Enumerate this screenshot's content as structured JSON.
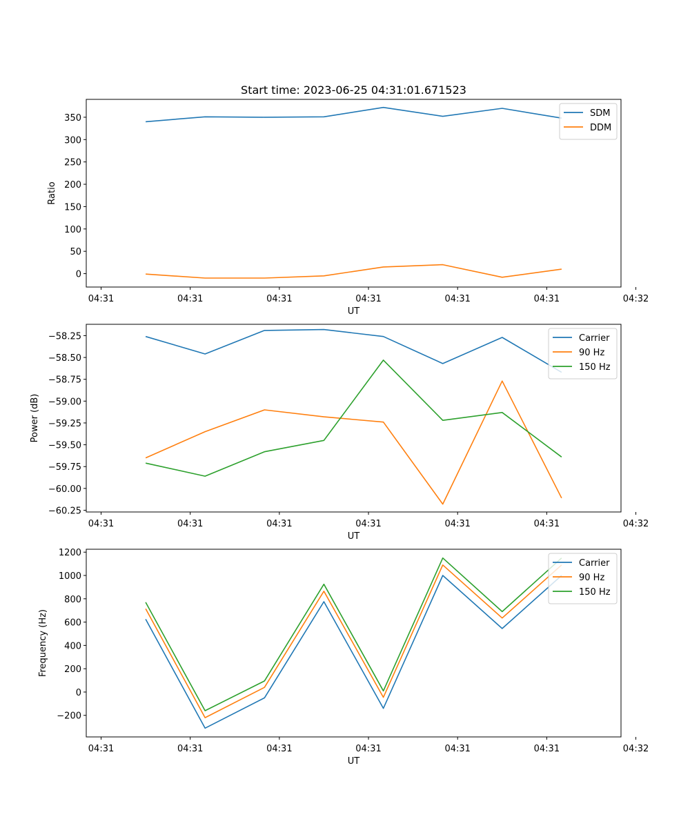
{
  "colors": {
    "c0": "#1f77b4",
    "c1": "#ff7f0e",
    "c2": "#2ca02c"
  },
  "chart_data": [
    {
      "type": "line",
      "title": "Start time: 2023-06-25 04:31:01.671523",
      "xlabel": "UT",
      "ylabel": "Ratio",
      "xlim": [
        0,
        9
      ],
      "ylim": [
        -30,
        390
      ],
      "xticks": [
        0.25,
        1.75,
        3.25,
        4.75,
        6.25,
        7.75,
        9.25
      ],
      "xtick_labels": [
        "04:31",
        "04:31",
        "04:31",
        "04:31",
        "04:31",
        "04:31",
        "04:32"
      ],
      "yticks": [
        0,
        50,
        100,
        150,
        200,
        250,
        300,
        350
      ],
      "ytick_labels": [
        "0",
        "50",
        "100",
        "150",
        "200",
        "250",
        "300",
        "350"
      ],
      "legend": "top-right",
      "x": [
        1,
        2,
        3,
        4,
        5,
        6,
        7,
        8
      ],
      "series": [
        {
          "name": "SDM",
          "color": "#1f77b4",
          "values": [
            340,
            351,
            350,
            351,
            372,
            352,
            370,
            348
          ]
        },
        {
          "name": "DDM",
          "color": "#ff7f0e",
          "values": [
            -1,
            -10,
            -10,
            -5,
            15,
            20,
            -8,
            10
          ]
        }
      ]
    },
    {
      "type": "line",
      "title": "",
      "xlabel": "UT",
      "ylabel": "Power (dB)",
      "xlim": [
        0,
        9
      ],
      "ylim": [
        -60.27,
        -58.12
      ],
      "xticks": [
        0.25,
        1.75,
        3.25,
        4.75,
        6.25,
        7.75,
        9.25
      ],
      "xtick_labels": [
        "04:31",
        "04:31",
        "04:31",
        "04:31",
        "04:31",
        "04:31",
        "04:32"
      ],
      "yticks": [
        -60.25,
        -60.0,
        -59.75,
        -59.5,
        -59.25,
        -59.0,
        -58.75,
        -58.5,
        -58.25
      ],
      "ytick_labels": [
        "−60.25",
        "−60.00",
        "−59.75",
        "−59.50",
        "−59.25",
        "−59.00",
        "−58.75",
        "−58.50",
        "−58.25"
      ],
      "legend": "top-right",
      "x": [
        1,
        2,
        3,
        4,
        5,
        6,
        7,
        8
      ],
      "series": [
        {
          "name": "Carrier",
          "color": "#1f77b4",
          "values": [
            -58.26,
            -58.46,
            -58.19,
            -58.18,
            -58.26,
            -58.57,
            -58.27,
            -58.67
          ]
        },
        {
          "name": "90 Hz",
          "color": "#ff7f0e",
          "values": [
            -59.65,
            -59.35,
            -59.1,
            -59.18,
            -59.24,
            -60.18,
            -58.77,
            -60.11
          ]
        },
        {
          "name": "150 Hz",
          "color": "#2ca02c",
          "values": [
            -59.71,
            -59.86,
            -59.58,
            -59.45,
            -58.53,
            -59.22,
            -59.13,
            -59.64
          ]
        }
      ]
    },
    {
      "type": "line",
      "title": "",
      "xlabel": "UT",
      "ylabel": "Frequency (Hz)",
      "xlim": [
        0,
        9
      ],
      "ylim": [
        -385,
        1225
      ],
      "xticks": [
        0.25,
        1.75,
        3.25,
        4.75,
        6.25,
        7.75,
        9.25
      ],
      "xtick_labels": [
        "04:31",
        "04:31",
        "04:31",
        "04:31",
        "04:31",
        "04:31",
        "04:32"
      ],
      "yticks": [
        -200,
        0,
        200,
        400,
        600,
        800,
        1000,
        1200
      ],
      "ytick_labels": [
        "−200",
        "0",
        "200",
        "400",
        "600",
        "800",
        "1000",
        "1200"
      ],
      "legend": "top-right",
      "x": [
        1,
        2,
        3,
        4,
        5,
        6,
        7,
        8
      ],
      "series": [
        {
          "name": "Carrier",
          "color": "#1f77b4",
          "values": [
            625,
            -310,
            -50,
            775,
            -140,
            1000,
            545,
            1000
          ]
        },
        {
          "name": "90 Hz",
          "color": "#ff7f0e",
          "values": [
            715,
            -220,
            40,
            865,
            -45,
            1090,
            635,
            1090
          ]
        },
        {
          "name": "150 Hz",
          "color": "#2ca02c",
          "values": [
            770,
            -160,
            95,
            925,
            10,
            1150,
            690,
            1150
          ]
        }
      ]
    }
  ]
}
